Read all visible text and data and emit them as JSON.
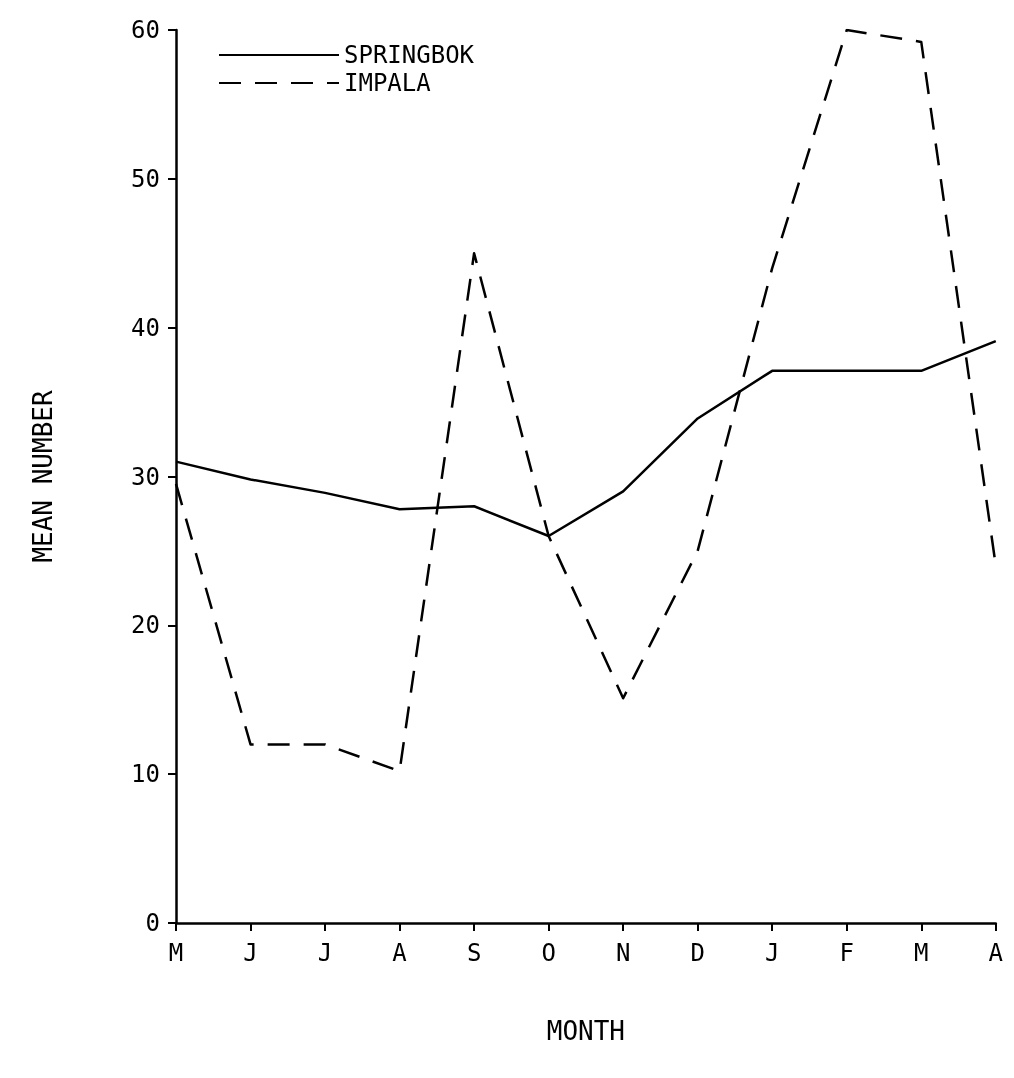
{
  "chart_data": {
    "type": "line",
    "xlabel": "MONTH",
    "ylabel": "MEAN NUMBER",
    "categories": [
      "M",
      "J",
      "J",
      "A",
      "S",
      "O",
      "N",
      "D",
      "J",
      "F",
      "M",
      "A"
    ],
    "series": [
      {
        "name": "SPRINGBOK",
        "color": "#000000",
        "line_style": "solid",
        "values": [
          31,
          29.8,
          28.9,
          27.8,
          28,
          26,
          29,
          33.9,
          37.1,
          37.1,
          37.1,
          39.1
        ]
      },
      {
        "name": "IMPALA",
        "color": "#000000",
        "line_style": "dashed",
        "values": [
          29.5,
          12,
          12,
          10.2,
          45,
          26,
          15.1,
          25,
          44,
          60,
          59.2,
          24
        ]
      }
    ],
    "ylim": [
      0,
      60
    ],
    "yticks": [
      0,
      10,
      20,
      30,
      40,
      50,
      60
    ],
    "grid": false,
    "legend": "top left",
    "marker": "none"
  }
}
